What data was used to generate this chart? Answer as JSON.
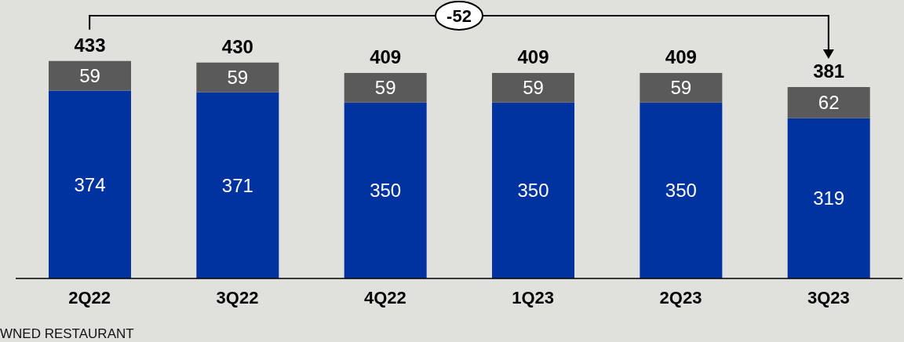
{
  "chart_data": {
    "type": "bar",
    "stacked": true,
    "data_labels": true,
    "categories": [
      "2Q22",
      "3Q22",
      "4Q22",
      "1Q23",
      "2Q23",
      "3Q23"
    ],
    "series": [
      {
        "color": "#0033a0",
        "values": [
          374,
          371,
          350,
          350,
          350,
          319
        ]
      },
      {
        "color": "#5a5a5a",
        "values": [
          59,
          59,
          59,
          59,
          59,
          62
        ]
      }
    ],
    "totals": [
      "433",
      "430",
      "409",
      "409",
      "409",
      "381"
    ],
    "annotations": [
      "-52",
      "WNED RESTAURANT"
    ]
  }
}
